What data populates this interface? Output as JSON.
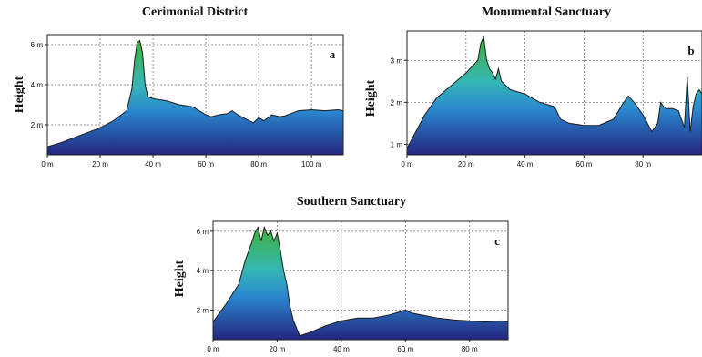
{
  "chart_data": [
    {
      "type": "area",
      "title": "Cerimonial District",
      "xlabel": "",
      "ylabel": "Height",
      "letter": "a",
      "xlim": [
        0,
        112
      ],
      "ylim": [
        0.5,
        6.5
      ],
      "xticks": [
        0,
        20,
        40,
        60,
        80,
        100
      ],
      "xtick_labels": [
        "0 m",
        "20 m",
        "40 m",
        "60 m",
        "80 m",
        "100 m"
      ],
      "yticks": [
        2,
        4,
        6
      ],
      "ytick_labels": [
        "2 m",
        "4 m",
        "6 m"
      ],
      "grid": true,
      "x": [
        0,
        5,
        10,
        15,
        20,
        25,
        30,
        32,
        33,
        34,
        35,
        36,
        37,
        38,
        40,
        45,
        50,
        55,
        60,
        62,
        65,
        68,
        70,
        72,
        75,
        78,
        80,
        82,
        85,
        88,
        90,
        93,
        95,
        100,
        105,
        110,
        112
      ],
      "y": [
        0.9,
        1.1,
        1.35,
        1.6,
        1.85,
        2.2,
        2.7,
        3.8,
        5.2,
        6.1,
        6.2,
        5.6,
        4.0,
        3.4,
        3.3,
        3.2,
        3.0,
        2.9,
        2.5,
        2.4,
        2.5,
        2.55,
        2.7,
        2.5,
        2.3,
        2.1,
        2.35,
        2.2,
        2.5,
        2.4,
        2.45,
        2.6,
        2.7,
        2.75,
        2.7,
        2.75,
        2.7
      ]
    },
    {
      "type": "area",
      "title": "Monumental Sanctuary",
      "xlabel": "",
      "ylabel": "Height",
      "letter": "b",
      "xlim": [
        0,
        100
      ],
      "ylim": [
        0.75,
        3.7
      ],
      "xticks": [
        0,
        20,
        40,
        60,
        80
      ],
      "xtick_labels": [
        "0 m",
        "20 m",
        "40 m",
        "60 m",
        "80 m"
      ],
      "yticks": [
        1,
        2,
        3
      ],
      "ytick_labels": [
        "1 m",
        "2 m",
        "3 m"
      ],
      "grid": true,
      "x": [
        0,
        3,
        6,
        10,
        15,
        20,
        24,
        25,
        26,
        27,
        28,
        29,
        30,
        31,
        32,
        35,
        40,
        45,
        50,
        52,
        55,
        60,
        65,
        70,
        73,
        75,
        77,
        80,
        83,
        85,
        86,
        87,
        88,
        90,
        92,
        94,
        95,
        96,
        97,
        98,
        99,
        100
      ],
      "y": [
        0.9,
        1.3,
        1.7,
        2.1,
        2.4,
        2.7,
        3.0,
        3.4,
        3.55,
        3.0,
        2.8,
        2.7,
        2.55,
        2.8,
        2.5,
        2.3,
        2.2,
        2.0,
        1.9,
        1.6,
        1.5,
        1.45,
        1.45,
        1.6,
        1.95,
        2.15,
        2.0,
        1.7,
        1.3,
        1.5,
        2.0,
        1.9,
        1.85,
        1.85,
        1.8,
        1.4,
        2.6,
        1.3,
        1.9,
        2.2,
        2.3,
        2.2
      ]
    },
    {
      "type": "area",
      "title": "Southern Sanctuary",
      "xlabel": "",
      "ylabel": "Height",
      "letter": "c",
      "xlim": [
        0,
        92
      ],
      "ylim": [
        0.5,
        6.5
      ],
      "xticks": [
        0,
        20,
        40,
        60,
        80
      ],
      "xtick_labels": [
        "0 m",
        "20 m",
        "40 m",
        "60 m",
        "80 m"
      ],
      "yticks": [
        2,
        4,
        6
      ],
      "ytick_labels": [
        "2 m",
        "4 m",
        "6 m"
      ],
      "grid": true,
      "x": [
        0,
        4,
        8,
        10,
        12,
        13,
        14,
        15,
        16,
        17,
        18,
        19,
        20,
        21,
        22,
        23,
        24,
        25,
        27,
        30,
        35,
        40,
        45,
        50,
        55,
        60,
        62,
        65,
        70,
        75,
        80,
        85,
        90,
        92
      ],
      "y": [
        1.4,
        2.3,
        3.3,
        4.5,
        5.4,
        5.9,
        6.2,
        5.5,
        6.2,
        5.8,
        6.0,
        5.5,
        5.9,
        5.0,
        4.0,
        3.3,
        2.2,
        1.5,
        0.7,
        0.85,
        1.2,
        1.45,
        1.6,
        1.6,
        1.75,
        2.0,
        1.85,
        1.75,
        1.6,
        1.5,
        1.45,
        1.4,
        1.45,
        1.4
      ]
    }
  ]
}
